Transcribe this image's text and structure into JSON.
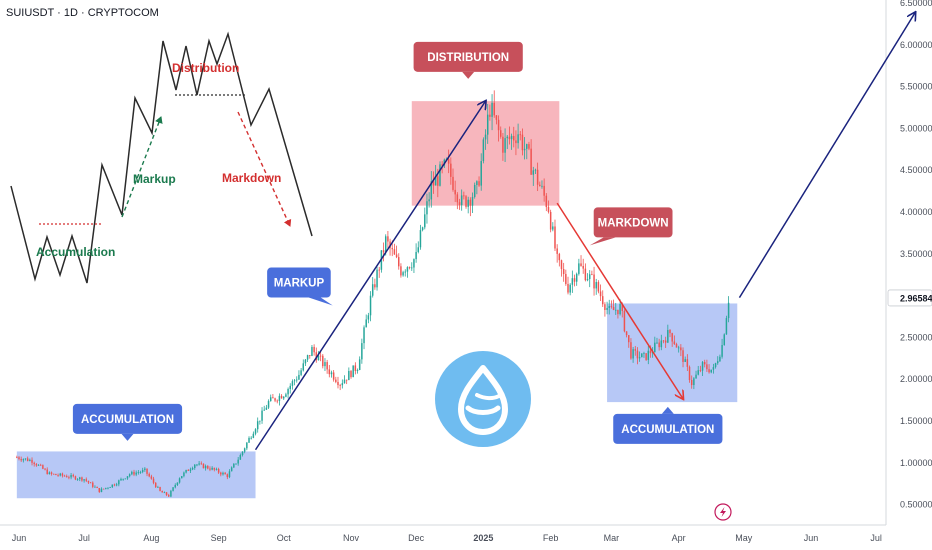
{
  "header": {
    "symbol_line": "SUIUSDT · 1D · CRYPTOCOM"
  },
  "chart_data": {
    "type": "candlestick",
    "title": "SUIUSDT · 1D · CRYPTOCOM",
    "x_ticks": [
      "Jun",
      "Jul",
      "Aug",
      "Sep",
      "Oct",
      "Nov",
      "Dec",
      "2025",
      "Feb",
      "Mar",
      "Apr",
      "May",
      "Jun",
      "Jul"
    ],
    "y_ticks": [
      "0.50000",
      "1.00000",
      "1.50000",
      "2.00000",
      "2.50000",
      "3.00000",
      "3.50000",
      "4.00000",
      "4.50000",
      "5.00000",
      "5.50000",
      "6.00000",
      "6.50000"
    ],
    "ylim": [
      0.4,
      6.55
    ],
    "last_price_label": "2.96584",
    "colors": {
      "up": "#26a69a",
      "down": "#ef5350",
      "path": "#1a237e",
      "markdown": "#e53935"
    },
    "price_path": [
      {
        "d": "2024-05-31",
        "p": 1.06
      },
      {
        "d": "2024-06-07",
        "p": 1.02
      },
      {
        "d": "2024-06-15",
        "p": 0.86
      },
      {
        "d": "2024-06-24",
        "p": 0.83
      },
      {
        "d": "2024-07-01",
        "p": 0.8
      },
      {
        "d": "2024-07-08",
        "p": 0.66
      },
      {
        "d": "2024-07-15",
        "p": 0.74
      },
      {
        "d": "2024-07-22",
        "p": 0.86
      },
      {
        "d": "2024-07-29",
        "p": 0.9
      },
      {
        "d": "2024-08-05",
        "p": 0.65
      },
      {
        "d": "2024-08-09",
        "p": 0.6
      },
      {
        "d": "2024-08-14",
        "p": 0.82
      },
      {
        "d": "2024-08-21",
        "p": 0.98
      },
      {
        "d": "2024-08-28",
        "p": 0.93
      },
      {
        "d": "2024-09-05",
        "p": 0.84
      },
      {
        "d": "2024-09-11",
        "p": 1.08
      },
      {
        "d": "2024-09-17",
        "p": 1.38
      },
      {
        "d": "2024-09-24",
        "p": 1.72
      },
      {
        "d": "2024-10-01",
        "p": 1.82
      },
      {
        "d": "2024-10-08",
        "p": 2.05
      },
      {
        "d": "2024-10-14",
        "p": 2.35
      },
      {
        "d": "2024-10-20",
        "p": 2.15
      },
      {
        "d": "2024-10-27",
        "p": 1.95
      },
      {
        "d": "2024-11-04",
        "p": 2.15
      },
      {
        "d": "2024-11-10",
        "p": 2.95
      },
      {
        "d": "2024-11-17",
        "p": 3.65
      },
      {
        "d": "2024-11-24",
        "p": 3.3
      },
      {
        "d": "2024-12-01",
        "p": 3.45
      },
      {
        "d": "2024-12-08",
        "p": 4.3
      },
      {
        "d": "2024-12-15",
        "p": 4.55
      },
      {
        "d": "2024-12-22",
        "p": 4.1
      },
      {
        "d": "2024-12-29",
        "p": 4.25
      },
      {
        "d": "2025-01-04",
        "p": 5.25
      },
      {
        "d": "2025-01-10",
        "p": 4.8
      },
      {
        "d": "2025-01-17",
        "p": 4.95
      },
      {
        "d": "2025-01-24",
        "p": 4.5
      },
      {
        "d": "2025-01-31",
        "p": 4.05
      },
      {
        "d": "2025-02-04",
        "p": 3.4
      },
      {
        "d": "2025-02-09",
        "p": 3.1
      },
      {
        "d": "2025-02-14",
        "p": 3.35
      },
      {
        "d": "2025-02-21",
        "p": 3.15
      },
      {
        "d": "2025-02-28",
        "p": 2.8
      },
      {
        "d": "2025-03-05",
        "p": 2.85
      },
      {
        "d": "2025-03-10",
        "p": 2.3
      },
      {
        "d": "2025-03-16",
        "p": 2.25
      },
      {
        "d": "2025-03-22",
        "p": 2.4
      },
      {
        "d": "2025-03-28",
        "p": 2.55
      },
      {
        "d": "2025-04-03",
        "p": 2.25
      },
      {
        "d": "2025-04-07",
        "p": 1.95
      },
      {
        "d": "2025-04-12",
        "p": 2.15
      },
      {
        "d": "2025-04-17",
        "p": 2.1
      },
      {
        "d": "2025-04-21",
        "p": 2.4
      },
      {
        "d": "2025-04-24",
        "p": 2.96
      }
    ],
    "zones": [
      {
        "name": "accumulation-zone-1",
        "from": "2024-05-31",
        "to": "2024-09-18",
        "low": 0.57,
        "high": 1.13,
        "fill": "#aabef5"
      },
      {
        "name": "distribution-zone",
        "from": "2024-11-29",
        "to": "2025-02-05",
        "low": 4.07,
        "high": 5.32,
        "fill": "#f6a9b1"
      },
      {
        "name": "accumulation-zone-2",
        "from": "2025-02-27",
        "to": "2025-04-28",
        "low": 1.72,
        "high": 2.9,
        "fill": "#aabef5"
      }
    ],
    "arrows": [
      {
        "name": "markup-arrow",
        "from": {
          "d": "2024-09-18",
          "p": 1.15
        },
        "to": {
          "d": "2025-01-02",
          "p": 5.32
        },
        "color": "#1a237e"
      },
      {
        "name": "markdown-arrow",
        "from": {
          "d": "2025-02-04",
          "p": 4.1
        },
        "to": {
          "d": "2025-04-03",
          "p": 1.76
        },
        "color": "#e53935"
      },
      {
        "name": "projection-arrow",
        "from": {
          "d": "2025-04-29",
          "p": 2.97
        },
        "to": {
          "d": "2025-07-19",
          "p": 6.38
        },
        "color": "#1a237e"
      }
    ],
    "annotations": [
      {
        "name": "callout-accumulation-1",
        "text": "ACCUMULATION",
        "at": {
          "d": "2024-07-21",
          "p": 1.52
        },
        "fill": "#4a6fdc",
        "tail": "down"
      },
      {
        "name": "callout-markup",
        "text": "MARKUP",
        "at": {
          "d": "2024-10-08",
          "p": 3.15
        },
        "fill": "#4a6fdc",
        "tail": "right"
      },
      {
        "name": "callout-distribution",
        "text": "DISTRIBUTION",
        "at": {
          "d": "2024-12-25",
          "p": 5.85
        },
        "fill": "#c7505b",
        "tail": "down"
      },
      {
        "name": "callout-markdown",
        "text": "MARKDOWN",
        "at": {
          "d": "2025-03-11",
          "p": 3.87
        },
        "fill": "#c7505b",
        "tail": "left"
      },
      {
        "name": "callout-accumulation-2",
        "text": "ACCUMULATION",
        "at": {
          "d": "2025-03-27",
          "p": 1.4
        },
        "fill": "#4a6fdc",
        "tail": "up"
      }
    ]
  },
  "inset_diagram": {
    "accumulation_label": "Accumulation",
    "markup_label": "Markup",
    "distribution_label": "Distribution",
    "markdown_label": "Markdown",
    "accent_green": "#1b7a4e",
    "accent_red": "#d32f2f"
  },
  "logo": {
    "name": "sui-logo",
    "color": "#6fbcf0"
  }
}
